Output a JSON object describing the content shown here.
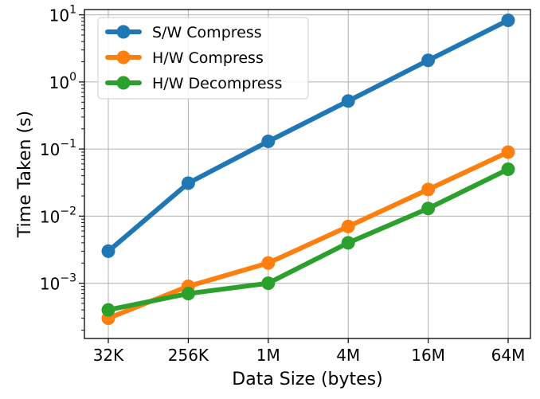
{
  "chart_data": {
    "type": "line",
    "xlabel": "Data Size (bytes)",
    "ylabel": "Time Taken (s)",
    "yscale": "log",
    "ylim": [
      0.00015,
      12
    ],
    "grid": true,
    "legend_position": "top-left",
    "categories": [
      "32K",
      "256K",
      "1M",
      "4M",
      "16M",
      "64M"
    ],
    "y_ticks": [
      {
        "value": 0.001,
        "base": "10",
        "exp": "−3"
      },
      {
        "value": 0.01,
        "base": "10",
        "exp": "−2"
      },
      {
        "value": 0.1,
        "base": "10",
        "exp": "−1"
      },
      {
        "value": 1,
        "base": "10",
        "exp": "0"
      },
      {
        "value": 10,
        "base": "10",
        "exp": "1"
      }
    ],
    "series": [
      {
        "name": "S/W Compress",
        "color": "#1f77b4",
        "values": [
          0.003,
          0.031,
          0.13,
          0.52,
          2.1,
          8.3
        ]
      },
      {
        "name": "H/W Compress",
        "color": "#ff7f0e",
        "values": [
          0.0003,
          0.0009,
          0.002,
          0.007,
          0.025,
          0.09
        ]
      },
      {
        "name": "H/W Decompress",
        "color": "#2ca02c",
        "values": [
          0.0004,
          0.0007,
          0.001,
          0.004,
          0.013,
          0.05
        ]
      }
    ]
  }
}
